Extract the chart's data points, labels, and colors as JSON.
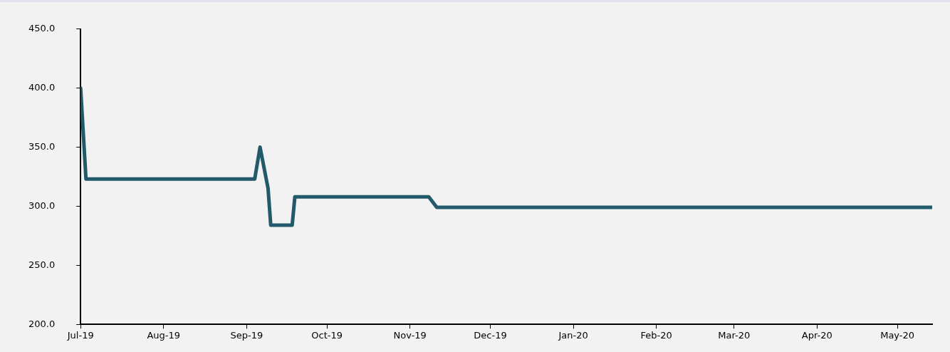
{
  "chart_data": {
    "type": "line",
    "x": [
      "2019-07-01",
      "2019-07-03",
      "2019-09-04",
      "2019-09-06",
      "2019-09-09",
      "2019-09-10",
      "2019-09-18",
      "2019-09-19",
      "2019-11-08",
      "2019-11-11",
      "2020-05-14"
    ],
    "series": [
      {
        "color": "#235a6a",
        "values": [
          400,
          323,
          323,
          350,
          315,
          284,
          284,
          308,
          308,
          299,
          299
        ]
      }
    ],
    "xlim": [
      "2019-07-01",
      "2020-05-14"
    ],
    "xticks": [
      {
        "value": "2019-07-01",
        "label": "Jul-19"
      },
      {
        "value": "2019-08-01",
        "label": "Aug-19"
      },
      {
        "value": "2019-09-01",
        "label": "Sep-19"
      },
      {
        "value": "2019-10-01",
        "label": "Oct-19"
      },
      {
        "value": "2019-11-01",
        "label": "Nov-19"
      },
      {
        "value": "2019-12-01",
        "label": "Dec-19"
      },
      {
        "value": "2020-01-01",
        "label": "Jan-20"
      },
      {
        "value": "2020-02-01",
        "label": "Feb-20"
      },
      {
        "value": "2020-03-01",
        "label": "Mar-20"
      },
      {
        "value": "2020-04-01",
        "label": "Apr-20"
      },
      {
        "value": "2020-05-01",
        "label": "May-20"
      }
    ],
    "ylim": [
      200,
      450
    ],
    "yticks": [
      {
        "value": 200,
        "label": "200.0"
      },
      {
        "value": 250,
        "label": "250.0"
      },
      {
        "value": 300,
        "label": "300.0"
      },
      {
        "value": 350,
        "label": "350.0"
      },
      {
        "value": 400,
        "label": "400.0"
      },
      {
        "value": 450,
        "label": "450.0"
      }
    ],
    "grid": false,
    "legend": false,
    "marker": "none",
    "line_style": "solid"
  }
}
